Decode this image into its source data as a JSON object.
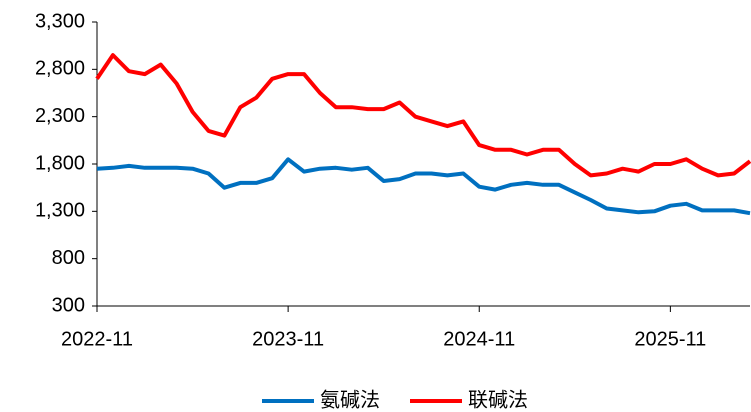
{
  "chart_data": {
    "type": "line",
    "x": [
      "2022-11",
      "2022-12",
      "2023-01",
      "2023-02",
      "2023-03",
      "2023-04",
      "2023-05",
      "2023-06",
      "2023-07",
      "2023-08",
      "2023-09",
      "2023-10",
      "2023-11",
      "2023-12",
      "2024-01",
      "2024-02",
      "2024-03",
      "2024-04",
      "2024-05",
      "2024-06",
      "2024-07",
      "2024-08",
      "2024-09",
      "2024-10",
      "2024-11",
      "2024-12",
      "2025-01",
      "2025-02",
      "2025-03",
      "2025-04",
      "2025-05",
      "2025-06",
      "2025-07",
      "2025-08",
      "2025-09",
      "2025-10",
      "2025-11",
      "2025-12",
      "2026-01",
      "2026-02",
      "2026-03",
      "2026-04"
    ],
    "series": [
      {
        "name": "氨碱法",
        "color": "#0070c0",
        "values": [
          1750,
          1760,
          1780,
          1760,
          1760,
          1760,
          1750,
          1700,
          1550,
          1600,
          1600,
          1650,
          1850,
          1720,
          1750,
          1760,
          1740,
          1760,
          1620,
          1640,
          1700,
          1700,
          1680,
          1700,
          1560,
          1530,
          1580,
          1600,
          1580,
          1580,
          1500,
          1420,
          1330,
          1310,
          1290,
          1300,
          1360,
          1380,
          1310,
          1310,
          1310,
          1280
        ]
      },
      {
        "name": "联碱法",
        "color": "#ff0000",
        "values": [
          2700,
          2950,
          2780,
          2750,
          2850,
          2650,
          2350,
          2150,
          2100,
          2400,
          2500,
          2700,
          2750,
          2750,
          2550,
          2400,
          2400,
          2380,
          2380,
          2450,
          2300,
          2250,
          2200,
          2250,
          2000,
          1950,
          1950,
          1900,
          1950,
          1950,
          1800,
          1680,
          1700,
          1750,
          1720,
          1800,
          1800,
          1850,
          1750,
          1680,
          1700,
          1830
        ]
      }
    ],
    "xlim": [
      "2022-11",
      "2026-04"
    ],
    "xticks": [
      "2022-11",
      "2023-11",
      "2024-11",
      "2025-11"
    ],
    "ylim": [
      300,
      3300
    ],
    "yticks": [
      300,
      800,
      {
        "value": 1300,
        "label": "1,300"
      },
      {
        "value": 1800,
        "label": "1,800"
      },
      {
        "value": 2300,
        "label": "2,300"
      },
      {
        "value": 2800,
        "label": "2,800"
      },
      {
        "value": 3300,
        "label": "3,300"
      }
    ],
    "grid": false,
    "legend": "bottom"
  }
}
